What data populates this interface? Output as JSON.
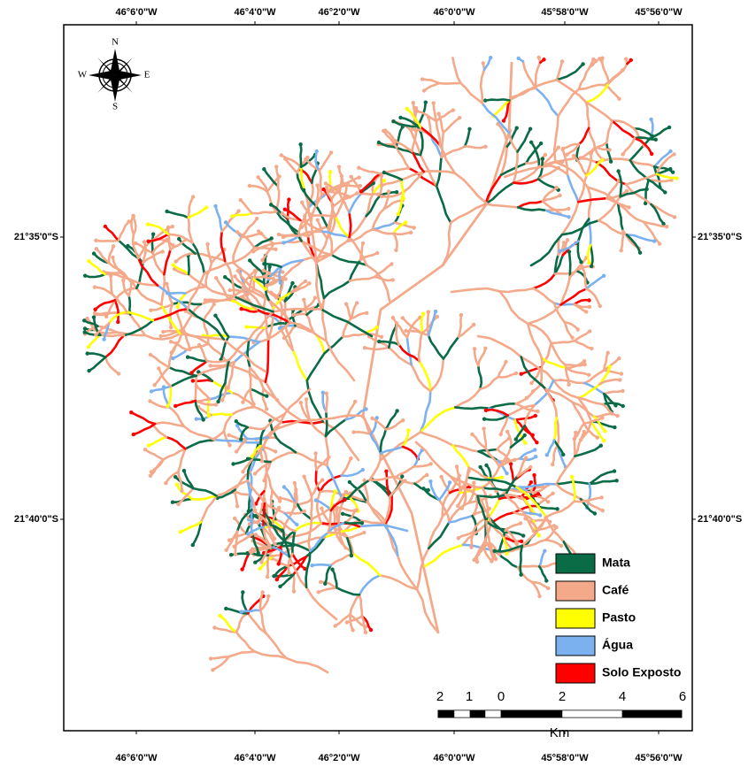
{
  "map": {
    "top_labels": [
      "46°6'0\"W",
      "46°4'0\"W",
      "46°2'0\"W",
      "46°0'0\"W",
      "45°58'0\"W",
      "45°56'0\"W"
    ],
    "bottom_labels": [
      "46°6'0\"W",
      "46°4'0\"W",
      "46°2'0\"W",
      "46°0'0\"W",
      "45°58'0\"W",
      "45°56'0\"W"
    ],
    "left_labels": [
      "21°35'0\"S",
      "21°40'0\"S"
    ],
    "right_labels": [
      "21°35'0\"S",
      "21°40'0\"S"
    ],
    "compass": {
      "north": "N",
      "east": "E",
      "south": "S",
      "west": "W"
    },
    "legend": [
      {
        "name": "Mata",
        "color": "#0a6b47"
      },
      {
        "name": "Café",
        "color": "#f4a98a"
      },
      {
        "name": "Pasto",
        "color": "#ffff00"
      },
      {
        "name": "Água",
        "color": "#7cb1f0"
      },
      {
        "name": "Solo Exposto",
        "color": "#ff0000"
      }
    ],
    "scale_bar": {
      "labels": [
        "2",
        "1",
        "0",
        "2",
        "4",
        "6"
      ],
      "unit": "Km"
    }
  }
}
